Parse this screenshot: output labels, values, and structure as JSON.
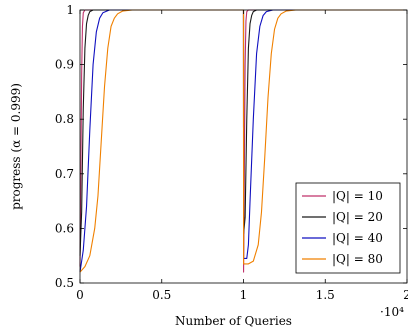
{
  "chart_data": {
    "type": "line",
    "xlabel": "Number of Queries",
    "ylabel": "progress (α = 0.999)",
    "x_multiplier_label": "·10⁴",
    "xlim": [
      0,
      20000
    ],
    "ylim": [
      0.5,
      1.0
    ],
    "x_ticks": [
      0,
      5000,
      10000,
      15000,
      20000
    ],
    "x_tick_labels": [
      "0",
      "0.5",
      "1",
      "1.5",
      "2"
    ],
    "y_ticks": [
      0.5,
      0.6,
      0.7,
      0.8,
      0.9,
      1.0
    ],
    "y_tick_labels": [
      "0.5",
      "0.6",
      "0.7",
      "0.8",
      "0.9",
      "1"
    ],
    "legend_position": "bottom-right",
    "grid": false,
    "series": [
      {
        "name": "|Q| = 10",
        "color": "#c0306a",
        "x": [
          0,
          50,
          100,
          150,
          200,
          300,
          10000,
          10005,
          10050,
          10100,
          10150,
          10200,
          10300,
          20000
        ],
        "y": [
          0.53,
          0.7,
          0.88,
          0.97,
          0.995,
          1.0,
          1.0,
          0.52,
          0.7,
          0.9,
          0.98,
          0.997,
          1.0,
          1.0
        ]
      },
      {
        "name": "|Q| = 20",
        "color": "#1a1a1a",
        "x": [
          0,
          100,
          200,
          300,
          400,
          500,
          600,
          800,
          10000,
          10005,
          10100,
          10200,
          10300,
          10400,
          10500,
          10600,
          10800,
          20000
        ],
        "y": [
          0.55,
          0.63,
          0.82,
          0.93,
          0.975,
          0.99,
          0.997,
          1.0,
          1.0,
          0.59,
          0.62,
          0.8,
          0.93,
          0.975,
          0.99,
          0.997,
          1.0,
          1.0
        ]
      },
      {
        "name": "|Q| = 40",
        "color": "#1010c0",
        "x": [
          0,
          200,
          400,
          600,
          800,
          1000,
          1200,
          1400,
          1800,
          10000,
          10005,
          10200,
          10300,
          10400,
          10600,
          10800,
          11000,
          11200,
          11400,
          11800,
          20000
        ],
        "y": [
          0.52,
          0.56,
          0.64,
          0.78,
          0.9,
          0.96,
          0.985,
          0.995,
          1.0,
          1.0,
          0.545,
          0.545,
          0.57,
          0.65,
          0.8,
          0.92,
          0.97,
          0.99,
          0.997,
          1.0,
          1.0
        ]
      },
      {
        "name": "|Q| = 80",
        "color": "#f08000",
        "x": [
          0,
          300,
          600,
          900,
          1100,
          1300,
          1500,
          1700,
          1900,
          2100,
          2300,
          2600,
          3200,
          10000,
          10005,
          10300,
          10600,
          10900,
          11100,
          11300,
          11500,
          11700,
          11900,
          12100,
          12300,
          12600,
          13200,
          20000
        ],
        "y": [
          0.52,
          0.53,
          0.55,
          0.6,
          0.66,
          0.76,
          0.86,
          0.93,
          0.97,
          0.985,
          0.993,
          0.998,
          1.0,
          1.0,
          0.535,
          0.535,
          0.54,
          0.57,
          0.63,
          0.73,
          0.84,
          0.92,
          0.965,
          0.985,
          0.993,
          0.998,
          1.0,
          1.0
        ]
      }
    ]
  }
}
